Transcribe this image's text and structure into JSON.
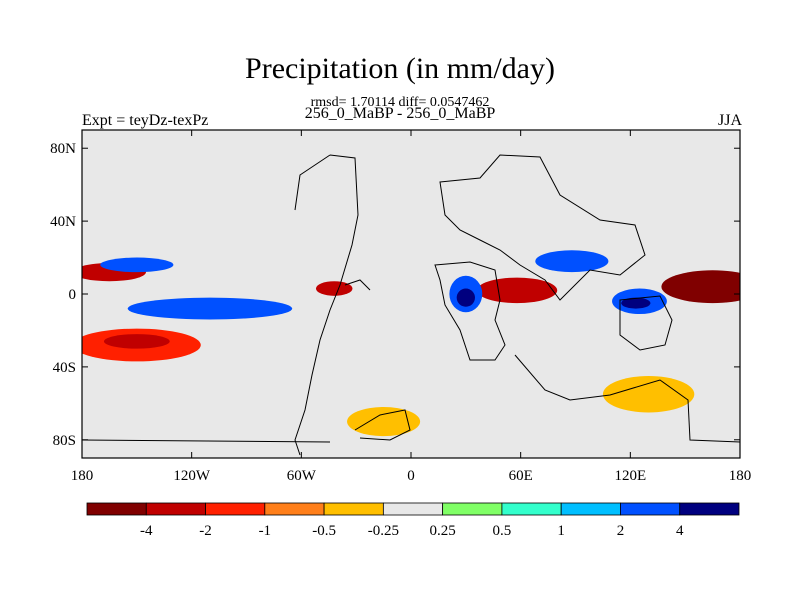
{
  "chart_data": {
    "type": "heatmap",
    "title": "Precipitation (in mm/day)",
    "stats_line": "rmsd= 1.70114 diff= 0.0547462",
    "subtitle": "256_0_MaBP - 256_0_MaBP",
    "left_label": "Expt = teyDz-texPz",
    "right_label": "JJA",
    "xlim": [
      -180,
      180
    ],
    "ylim": [
      -90,
      90
    ],
    "x_ticks": [
      {
        "value": -180,
        "label": "180"
      },
      {
        "value": -120,
        "label": "120W"
      },
      {
        "value": -60,
        "label": "60W"
      },
      {
        "value": 0,
        "label": "0"
      },
      {
        "value": 60,
        "label": "60E"
      },
      {
        "value": 120,
        "label": "120E"
      },
      {
        "value": 180,
        "label": "180"
      }
    ],
    "y_ticks": [
      {
        "value": 80,
        "label": "80N"
      },
      {
        "value": 40,
        "label": "40N"
      },
      {
        "value": 0,
        "label": "0"
      },
      {
        "value": -40,
        "label": "40S"
      },
      {
        "value": -80,
        "label": "80S"
      }
    ],
    "colorbar": {
      "colors": [
        "#800000",
        "#c00000",
        "#ff2000",
        "#ff7f1a",
        "#ffbf00",
        "#e8e8e8",
        "#80ff66",
        "#33ffcc",
        "#00bfff",
        "#0050ff",
        "#00007f"
      ],
      "labels": [
        "-4",
        "-2",
        "-1",
        "-0.5",
        "-0.25",
        "0.25",
        "0.5",
        "1",
        "2",
        "4"
      ]
    },
    "regions": [
      {
        "name": "westpac-dry",
        "color": "#800000",
        "cx": 165,
        "cy": 4,
        "rx": 28,
        "ry": 9
      },
      {
        "name": "indian-dry",
        "color": "#c00000",
        "cx": 58,
        "cy": 2,
        "rx": 22,
        "ry": 7
      },
      {
        "name": "eastpac-dry",
        "color": "#c00000",
        "cx": -165,
        "cy": 12,
        "rx": 20,
        "ry": 5
      },
      {
        "name": "atl-dry",
        "color": "#c00000",
        "cx": -42,
        "cy": 3,
        "rx": 10,
        "ry": 4
      },
      {
        "name": "sh-pac-dry",
        "color": "#ff2000",
        "cx": -150,
        "cy": -28,
        "rx": 35,
        "ry": 9
      },
      {
        "name": "sh-pac-dry-core",
        "color": "#c00000",
        "cx": -150,
        "cy": -26,
        "rx": 18,
        "ry": 4
      },
      {
        "name": "africa-wet",
        "color": "#0050ff",
        "cx": 30,
        "cy": 0,
        "rx": 9,
        "ry": 10
      },
      {
        "name": "africa-wet-core",
        "color": "#00007f",
        "cx": 30,
        "cy": -2,
        "rx": 5,
        "ry": 5
      },
      {
        "name": "india-wet",
        "color": "#0050ff",
        "cx": 88,
        "cy": 18,
        "rx": 20,
        "ry": 6
      },
      {
        "name": "westpac-wet",
        "color": "#0050ff",
        "cx": 125,
        "cy": -4,
        "rx": 15,
        "ry": 7
      },
      {
        "name": "westpac-wet-core",
        "color": "#00007f",
        "cx": 123,
        "cy": -5,
        "rx": 8,
        "ry": 3
      },
      {
        "name": "itcz-wet",
        "color": "#0050ff",
        "cx": -110,
        "cy": -8,
        "rx": 45,
        "ry": 6
      },
      {
        "name": "nh-pac-wet",
        "color": "#0050ff",
        "cx": -150,
        "cy": 16,
        "rx": 20,
        "ry": 4
      },
      {
        "name": "sh-atl-dry",
        "color": "#ffbf00",
        "cx": -15,
        "cy": -70,
        "rx": 20,
        "ry": 8
      },
      {
        "name": "sh-ind-dry",
        "color": "#ffbf00",
        "cx": 130,
        "cy": -55,
        "rx": 25,
        "ry": 10
      }
    ]
  }
}
